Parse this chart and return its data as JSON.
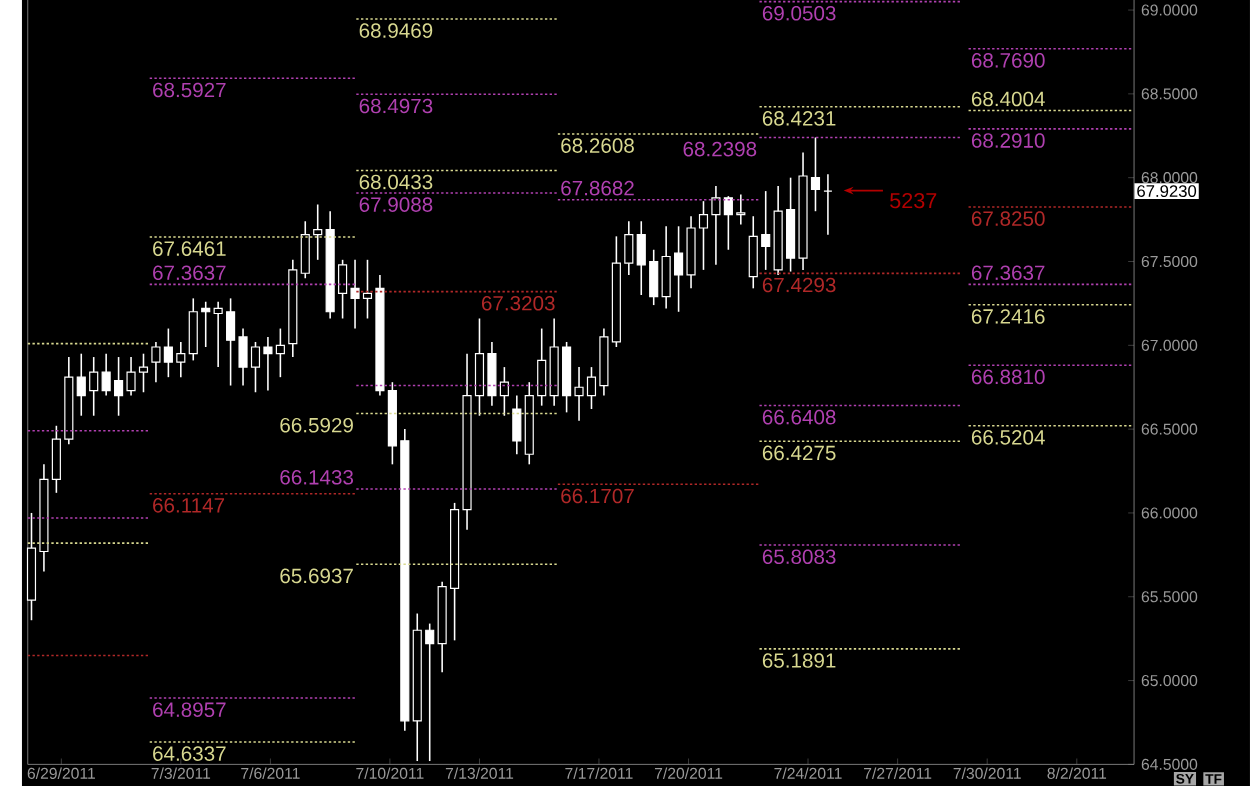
{
  "chart_data": {
    "type": "candlestick",
    "color": "#ffffff",
    "x": [
      "2011-06-28T00:00",
      "2011-06-28T10:00",
      "2011-06-28T20:00",
      "2011-06-29T06:00",
      "2011-06-29T16:00",
      "2011-06-30T02:00",
      "2011-06-30T12:00",
      "2011-06-30T22:00",
      "2011-07-01T08:00",
      "2011-07-01T18:00",
      "2011-07-02T04:00",
      "2011-07-02T14:00",
      "2011-07-03T00:00",
      "2011-07-03T10:00",
      "2011-07-03T20:00",
      "2011-07-04T06:00",
      "2011-07-04T16:00",
      "2011-07-05T02:00",
      "2011-07-05T12:00",
      "2011-07-05T22:00",
      "2011-07-06T08:00",
      "2011-07-06T18:00",
      "2011-07-07T04:00",
      "2011-07-07T14:00",
      "2011-07-08T00:00",
      "2011-07-08T10:00",
      "2011-07-08T20:00",
      "2011-07-09T06:00",
      "2011-07-09T16:00",
      "2011-07-10T02:00",
      "2011-07-10T12:00",
      "2011-07-10T22:00",
      "2011-07-11T08:00",
      "2011-07-11T18:00",
      "2011-07-12T04:00",
      "2011-07-12T14:00",
      "2011-07-13T00:00",
      "2011-07-13T10:00",
      "2011-07-13T20:00",
      "2011-07-14T06:00",
      "2011-07-14T16:00",
      "2011-07-15T02:00",
      "2011-07-15T12:00",
      "2011-07-15T22:00",
      "2011-07-16T08:00",
      "2011-07-16T18:00",
      "2011-07-17T04:00",
      "2011-07-17T14:00",
      "2011-07-18T00:00",
      "2011-07-18T10:00",
      "2011-07-18T20:00",
      "2011-07-19T06:00",
      "2011-07-19T16:00",
      "2011-07-20T02:00",
      "2011-07-20T12:00",
      "2011-07-20T22:00",
      "2011-07-21T08:00",
      "2011-07-21T18:00",
      "2011-07-22T04:00",
      "2011-07-22T14:00",
      "2011-07-23T00:00",
      "2011-07-23T10:00",
      "2011-07-23T20:00",
      "2011-07-24T06:00",
      "2011-07-24T16:00"
    ],
    "ohlc": [
      [
        65.48,
        66.0,
        65.36,
        65.79
      ],
      [
        65.77,
        66.29,
        65.65,
        66.2
      ],
      [
        66.2,
        66.52,
        66.12,
        66.44
      ],
      [
        66.44,
        66.93,
        66.41,
        66.81
      ],
      [
        66.81,
        66.95,
        66.58,
        66.7
      ],
      [
        66.73,
        66.93,
        66.58,
        66.84
      ],
      [
        66.84,
        66.95,
        66.7,
        66.73
      ],
      [
        66.79,
        66.93,
        66.58,
        66.7
      ],
      [
        66.73,
        66.93,
        66.7,
        66.84
      ],
      [
        66.84,
        66.95,
        66.72,
        66.87
      ],
      [
        66.9,
        67.02,
        66.78,
        66.99
      ],
      [
        66.99,
        67.1,
        66.81,
        66.9
      ],
      [
        66.9,
        67.02,
        66.81,
        66.95
      ],
      [
        66.95,
        67.28,
        66.91,
        67.2
      ],
      [
        67.22,
        67.26,
        66.99,
        67.2
      ],
      [
        67.19,
        67.26,
        66.87,
        67.22
      ],
      [
        67.2,
        67.28,
        66.76,
        67.03
      ],
      [
        67.05,
        67.1,
        66.76,
        66.87
      ],
      [
        66.87,
        67.02,
        66.72,
        66.99
      ],
      [
        66.99,
        67.05,
        66.73,
        66.95
      ],
      [
        66.95,
        67.1,
        66.81,
        67.0
      ],
      [
        67.01,
        67.51,
        66.93,
        67.45
      ],
      [
        67.43,
        67.74,
        67.4,
        67.66
      ],
      [
        67.66,
        67.84,
        67.51,
        67.69
      ],
      [
        67.69,
        67.8,
        67.16,
        67.2
      ],
      [
        67.31,
        67.51,
        67.16,
        67.48
      ],
      [
        67.34,
        67.51,
        67.1,
        67.28
      ],
      [
        67.28,
        67.51,
        67.16,
        67.31
      ],
      [
        67.34,
        67.42,
        66.7,
        66.73
      ],
      [
        66.73,
        66.78,
        66.29,
        66.4
      ],
      [
        66.43,
        66.5,
        64.7,
        64.76
      ],
      [
        64.76,
        65.4,
        64.52,
        65.3
      ],
      [
        65.3,
        65.34,
        64.52,
        65.22
      ],
      [
        65.22,
        65.59,
        65.05,
        65.56
      ],
      [
        65.55,
        66.06,
        65.24,
        66.02
      ],
      [
        66.02,
        66.95,
        65.9,
        66.7
      ],
      [
        66.7,
        67.16,
        66.58,
        66.95
      ],
      [
        66.95,
        67.02,
        66.64,
        66.7
      ],
      [
        66.7,
        66.87,
        66.58,
        66.78
      ],
      [
        66.62,
        66.7,
        66.35,
        66.43
      ],
      [
        66.35,
        66.78,
        66.29,
        66.7
      ],
      [
        66.7,
        67.1,
        66.64,
        66.91
      ],
      [
        66.7,
        67.16,
        66.64,
        66.99
      ],
      [
        66.99,
        67.02,
        66.6,
        66.7
      ],
      [
        66.7,
        66.87,
        66.55,
        66.75
      ],
      [
        66.7,
        66.87,
        66.62,
        66.81
      ],
      [
        66.76,
        67.1,
        66.7,
        67.05
      ],
      [
        67.02,
        67.65,
        66.99,
        67.49
      ],
      [
        67.49,
        67.74,
        67.42,
        67.66
      ],
      [
        67.66,
        67.74,
        67.3,
        67.48
      ],
      [
        67.5,
        67.57,
        67.24,
        67.29
      ],
      [
        67.29,
        67.71,
        67.22,
        67.53
      ],
      [
        67.55,
        67.71,
        67.2,
        67.42
      ],
      [
        67.42,
        67.77,
        67.34,
        67.7
      ],
      [
        67.7,
        67.86,
        67.45,
        67.78
      ],
      [
        67.78,
        67.95,
        67.48,
        67.88
      ],
      [
        67.88,
        67.89,
        67.57,
        67.78
      ],
      [
        67.78,
        67.9,
        67.72,
        67.79
      ],
      [
        67.41,
        67.77,
        67.34,
        67.65
      ],
      [
        67.66,
        67.92,
        67.45,
        67.59
      ],
      [
        67.45,
        67.95,
        67.42,
        67.8
      ],
      [
        67.81,
        68.0,
        67.44,
        67.52
      ],
      [
        67.52,
        68.15,
        67.45,
        68.01
      ],
      [
        68.0,
        68.24,
        67.8,
        67.93
      ],
      [
        67.92,
        68.02,
        67.66,
        67.92
      ]
    ],
    "xlim": [
      "2011-06-27T21:00",
      "2011-08-03T22:00"
    ],
    "xticks": [
      {
        "value": "2011-06-29",
        "label": "6/29/2011"
      },
      {
        "value": "2011-07-03",
        "label": "7/3/2011"
      },
      {
        "value": "2011-07-06",
        "label": "7/6/2011"
      },
      {
        "value": "2011-07-10",
        "label": "7/10/2011"
      },
      {
        "value": "2011-07-13",
        "label": "7/13/2011"
      },
      {
        "value": "2011-07-17",
        "label": "7/17/2011"
      },
      {
        "value": "2011-07-20",
        "label": "7/20/2011"
      },
      {
        "value": "2011-07-24",
        "label": "7/24/2011"
      },
      {
        "value": "2011-07-27",
        "label": "7/27/2011"
      },
      {
        "value": "2011-07-30",
        "label": "7/30/2011"
      },
      {
        "value": "2011-08-02",
        "label": "8/2/2011"
      }
    ],
    "ylim": [
      64.5,
      69.06
    ],
    "yticks": [
      {
        "value": 64.5,
        "label": "64.5000"
      },
      {
        "value": 65.0,
        "label": "65.0000"
      },
      {
        "value": 65.5,
        "label": "65.5000"
      },
      {
        "value": 66.0,
        "label": "66.0000"
      },
      {
        "value": 66.5,
        "label": "66.5000"
      },
      {
        "value": 67.0,
        "label": "67.0000"
      },
      {
        "value": 67.5,
        "label": "67.5000"
      },
      {
        "value": 68.0,
        "label": "68.0000"
      },
      {
        "value": 68.5,
        "label": "68.5000"
      },
      {
        "value": 69.0,
        "label": "69.0000"
      }
    ],
    "series": [
      {
        "type": "line",
        "color": "#d8d890",
        "line_style": "dotted",
        "x": [
          "2011-06-27T21:00",
          "2011-07-01T23:00"
        ],
        "values": [
          67.01,
          67.01
        ]
      },
      {
        "type": "line",
        "color": "#b040b0",
        "line_style": "dotted",
        "x": [
          "2011-06-27T21:00",
          "2011-07-01T23:00"
        ],
        "values": [
          66.49,
          66.49
        ]
      },
      {
        "type": "line",
        "color": "#b040b0",
        "line_style": "dotted",
        "x": [
          "2011-06-27T21:00",
          "2011-07-01T23:00"
        ],
        "values": [
          65.97,
          65.97
        ]
      },
      {
        "type": "line",
        "color": "#d8d890",
        "line_style": "dotted",
        "x": [
          "2011-06-27T21:00",
          "2011-07-01T23:00"
        ],
        "values": [
          65.82,
          65.82
        ]
      },
      {
        "type": "line",
        "color": "#b02828",
        "line_style": "dotted",
        "x": [
          "2011-06-27T21:00",
          "2011-07-01T23:00"
        ],
        "values": [
          65.15,
          65.15
        ]
      },
      {
        "type": "line",
        "color": "#b040b0",
        "line_style": "dotted",
        "x": [
          "2011-07-01T23:00",
          "2011-07-08T21:00"
        ],
        "values": [
          68.5927,
          68.5927
        ],
        "value_labels": [
          "68.5927",
          null
        ]
      },
      {
        "type": "line",
        "color": "#d8d890",
        "line_style": "dotted",
        "x": [
          "2011-07-01T23:00",
          "2011-07-08T21:00"
        ],
        "values": [
          67.6461,
          67.6461
        ],
        "value_labels": [
          "67.6461",
          null
        ]
      },
      {
        "type": "line",
        "color": "#b040b0",
        "line_style": "dotted",
        "x": [
          "2011-07-01T23:00",
          "2011-07-08T21:00"
        ],
        "values": [
          67.3637,
          67.3637
        ],
        "value_labels": [
          "67.3637",
          null
        ]
      },
      {
        "type": "line",
        "color": "#b02828",
        "line_style": "dotted",
        "x": [
          "2011-07-01T23:00",
          "2011-07-08T21:00"
        ],
        "values": [
          66.1147,
          66.1147
        ],
        "value_labels": [
          "66.1147",
          null
        ]
      },
      {
        "type": "line",
        "color": "#b040b0",
        "line_style": "dotted",
        "x": [
          "2011-07-01T23:00",
          "2011-07-08T21:00"
        ],
        "values": [
          64.8957,
          64.8957
        ],
        "value_labels": [
          "64.8957",
          null
        ]
      },
      {
        "type": "line",
        "color": "#d8d890",
        "line_style": "dotted",
        "x": [
          "2011-07-01T23:00",
          "2011-07-08T21:00"
        ],
        "values": [
          64.6337,
          64.6337
        ],
        "value_labels": [
          "64.6337",
          null
        ]
      },
      {
        "type": "line",
        "color": "#d8d890",
        "line_style": "dotted",
        "x": [
          "2011-07-08T21:00",
          "2011-07-15T15:00"
        ],
        "values": [
          68.9469,
          68.9469
        ],
        "value_labels": [
          "68.9469",
          null
        ]
      },
      {
        "type": "line",
        "color": "#b040b0",
        "line_style": "dotted",
        "x": [
          "2011-07-08T21:00",
          "2011-07-15T15:00"
        ],
        "values": [
          68.4973,
          68.4973
        ],
        "value_labels": [
          "68.4973",
          null
        ]
      },
      {
        "type": "line",
        "color": "#d8d890",
        "line_style": "dotted",
        "x": [
          "2011-07-08T21:00",
          "2011-07-15T15:00"
        ],
        "values": [
          68.0433,
          68.0433
        ],
        "value_labels": [
          "68.0433",
          null
        ]
      },
      {
        "type": "line",
        "color": "#b040b0",
        "line_style": "dotted",
        "x": [
          "2011-07-08T21:00",
          "2011-07-15T15:00"
        ],
        "values": [
          67.9088,
          67.9088
        ],
        "value_labels": [
          "67.9088",
          null
        ]
      },
      {
        "type": "line",
        "color": "#b02828",
        "line_style": "dotted",
        "x": [
          "2011-07-08T21:00",
          "2011-07-15T15:00"
        ],
        "values": [
          67.3203,
          67.3203
        ],
        "value_labels": [
          null,
          "67.3203"
        ]
      },
      {
        "type": "line",
        "color": "#b040b0",
        "line_style": "dotted",
        "x": [
          "2011-07-08T21:00",
          "2011-07-15T15:00"
        ],
        "values": [
          66.76,
          66.76
        ]
      },
      {
        "type": "line",
        "color": "#d8d890",
        "line_style": "dotted",
        "x": [
          "2011-07-08T21:00",
          "2011-07-15T15:00"
        ],
        "values": [
          66.5929,
          66.5929
        ],
        "value_labels": [
          "66.5929",
          null
        ]
      },
      {
        "type": "line",
        "color": "#b040b0",
        "line_style": "dotted",
        "x": [
          "2011-07-08T21:00",
          "2011-07-15T15:00"
        ],
        "values": [
          66.1433,
          66.1433
        ],
        "value_labels": [
          "66.1433",
          null
        ]
      },
      {
        "type": "line",
        "color": "#d8d890",
        "line_style": "dotted",
        "x": [
          "2011-07-08T21:00",
          "2011-07-15T15:00"
        ],
        "values": [
          65.6937,
          65.6937
        ],
        "value_labels": [
          "65.6937",
          null
        ]
      },
      {
        "type": "line",
        "color": "#d8d890",
        "line_style": "dotted",
        "x": [
          "2011-07-15T15:00",
          "2011-07-22T09:00"
        ],
        "values": [
          68.2608,
          68.2608
        ],
        "value_labels": [
          "68.2608",
          null
        ]
      },
      {
        "type": "line",
        "color": "#b040b0",
        "line_style": "dotted",
        "x": [
          "2011-07-15T15:00",
          "2011-07-22T09:00"
        ],
        "values": [
          67.8682,
          67.8682
        ],
        "value_labels": [
          "67.8682",
          null
        ]
      },
      {
        "type": "line",
        "color": "#b02828",
        "line_style": "dotted",
        "x": [
          "2011-07-15T15:00",
          "2011-07-22T09:00"
        ],
        "values": [
          66.1707,
          66.1707
        ],
        "value_labels": [
          "66.1707",
          null
        ]
      },
      {
        "type": "line",
        "color": "#b040b0",
        "line_style": "dotted",
        "x": [
          "2011-07-22T09:00",
          "2011-07-29T03:00"
        ],
        "values": [
          69.0503,
          69.0503
        ],
        "value_labels": [
          "69.0503",
          null
        ]
      },
      {
        "type": "line",
        "color": "#d8d890",
        "line_style": "dotted",
        "x": [
          "2011-07-22T09:00",
          "2011-07-29T03:00"
        ],
        "values": [
          68.4231,
          68.4231
        ],
        "value_labels": [
          "68.4231",
          null
        ]
      },
      {
        "type": "line",
        "color": "#b040b0",
        "line_style": "dotted",
        "x": [
          "2011-07-22T09:00",
          "2011-07-29T03:00"
        ],
        "values": [
          68.2398,
          68.2398
        ],
        "value_labels": [
          "68.2398",
          null
        ]
      },
      {
        "type": "line",
        "color": "#b02828",
        "line_style": "dotted",
        "x": [
          "2011-07-22T09:00",
          "2011-07-29T03:00"
        ],
        "values": [
          67.4293,
          67.4293
        ],
        "value_labels": [
          "67.4293",
          null
        ]
      },
      {
        "type": "line",
        "color": "#b040b0",
        "line_style": "dotted",
        "x": [
          "2011-07-22T09:00",
          "2011-07-29T03:00"
        ],
        "values": [
          66.6408,
          66.6408
        ],
        "value_labels": [
          "66.6408",
          null
        ]
      },
      {
        "type": "line",
        "color": "#d8d890",
        "line_style": "dotted",
        "x": [
          "2011-07-22T09:00",
          "2011-07-29T03:00"
        ],
        "values": [
          66.4275,
          66.4275
        ],
        "value_labels": [
          "66.4275",
          null
        ]
      },
      {
        "type": "line",
        "color": "#b040b0",
        "line_style": "dotted",
        "x": [
          "2011-07-22T09:00",
          "2011-07-29T03:00"
        ],
        "values": [
          65.8083,
          65.8083
        ],
        "value_labels": [
          "65.8083",
          null
        ]
      },
      {
        "type": "line",
        "color": "#d8d890",
        "line_style": "dotted",
        "x": [
          "2011-07-22T09:00",
          "2011-07-29T03:00"
        ],
        "values": [
          65.1891,
          65.1891
        ],
        "value_labels": [
          "65.1891",
          null
        ]
      },
      {
        "type": "line",
        "color": "#b040b0",
        "line_style": "dotted",
        "x": [
          "2011-07-29T09:00",
          "2011-08-03T21:00"
        ],
        "values": [
          68.769,
          68.769
        ],
        "value_labels": [
          "68.7690",
          null
        ]
      },
      {
        "type": "line",
        "color": "#d8d890",
        "line_style": "dotted",
        "x": [
          "2011-07-29T09:00",
          "2011-08-03T21:00"
        ],
        "values": [
          68.4004,
          68.4004
        ],
        "value_labels": [
          "68.4004",
          null
        ]
      },
      {
        "type": "line",
        "color": "#b040b0",
        "line_style": "dotted",
        "x": [
          "2011-07-29T09:00",
          "2011-08-03T21:00"
        ],
        "values": [
          68.291,
          68.291
        ],
        "value_labels": [
          "68.2910",
          null
        ]
      },
      {
        "type": "line",
        "color": "#b02828",
        "line_style": "dotted",
        "x": [
          "2011-07-29T09:00",
          "2011-08-03T21:00"
        ],
        "values": [
          67.825,
          67.825
        ],
        "value_labels": [
          "67.8250",
          null
        ]
      },
      {
        "type": "line",
        "color": "#b040b0",
        "line_style": "dotted",
        "x": [
          "2011-07-29T09:00",
          "2011-08-03T21:00"
        ],
        "values": [
          67.3637,
          67.3637
        ],
        "value_labels": [
          "67.3637",
          null
        ]
      },
      {
        "type": "line",
        "color": "#d8d890",
        "line_style": "dotted",
        "x": [
          "2011-07-29T09:00",
          "2011-08-03T21:00"
        ],
        "values": [
          67.2416,
          67.2416
        ],
        "value_labels": [
          "67.2416",
          null
        ]
      },
      {
        "type": "line",
        "color": "#b040b0",
        "line_style": "dotted",
        "x": [
          "2011-07-29T09:00",
          "2011-08-03T21:00"
        ],
        "values": [
          66.881,
          66.881
        ],
        "value_labels": [
          "66.8810",
          null
        ]
      },
      {
        "type": "line",
        "color": "#d8d890",
        "line_style": "dotted",
        "x": [
          "2011-07-29T09:00",
          "2011-08-03T21:00"
        ],
        "values": [
          66.5204,
          66.5204
        ],
        "value_labels": [
          "66.5204",
          null
        ]
      }
    ],
    "annotations": [
      {
        "text": "5237",
        "x": "2011-07-24T16:00",
        "y": 67.923
      },
      "67.9230",
      "SY",
      "TF"
    ]
  }
}
